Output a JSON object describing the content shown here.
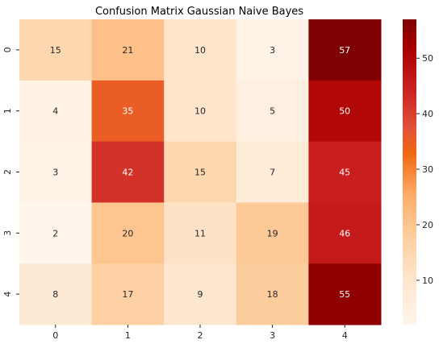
{
  "chart_data": {
    "type": "heatmap",
    "title": "Confusion Matrix Gaussian Naive Bayes",
    "xlabel": "",
    "ylabel": "",
    "x_categories": [
      "0",
      "1",
      "2",
      "3",
      "4"
    ],
    "y_categories": [
      "0",
      "1",
      "2",
      "3",
      "4"
    ],
    "values": [
      [
        15,
        21,
        10,
        3,
        57
      ],
      [
        4,
        35,
        10,
        5,
        50
      ],
      [
        3,
        42,
        15,
        7,
        45
      ],
      [
        2,
        20,
        11,
        19,
        46
      ],
      [
        8,
        17,
        9,
        18,
        55
      ]
    ],
    "colormap": "OrRd-like (light cream to dark red)",
    "color_range": [
      2,
      57
    ],
    "colorbar_ticks": [
      "10",
      "20",
      "30",
      "40",
      "50"
    ],
    "colorbar_tick_values": [
      10,
      20,
      30,
      40,
      50
    ],
    "colors": {
      "low": "#fff5eb",
      "high": "#7f0000"
    },
    "annotation_colors": {
      "dark_text": "#262626",
      "light_text": "#ffffff"
    }
  }
}
